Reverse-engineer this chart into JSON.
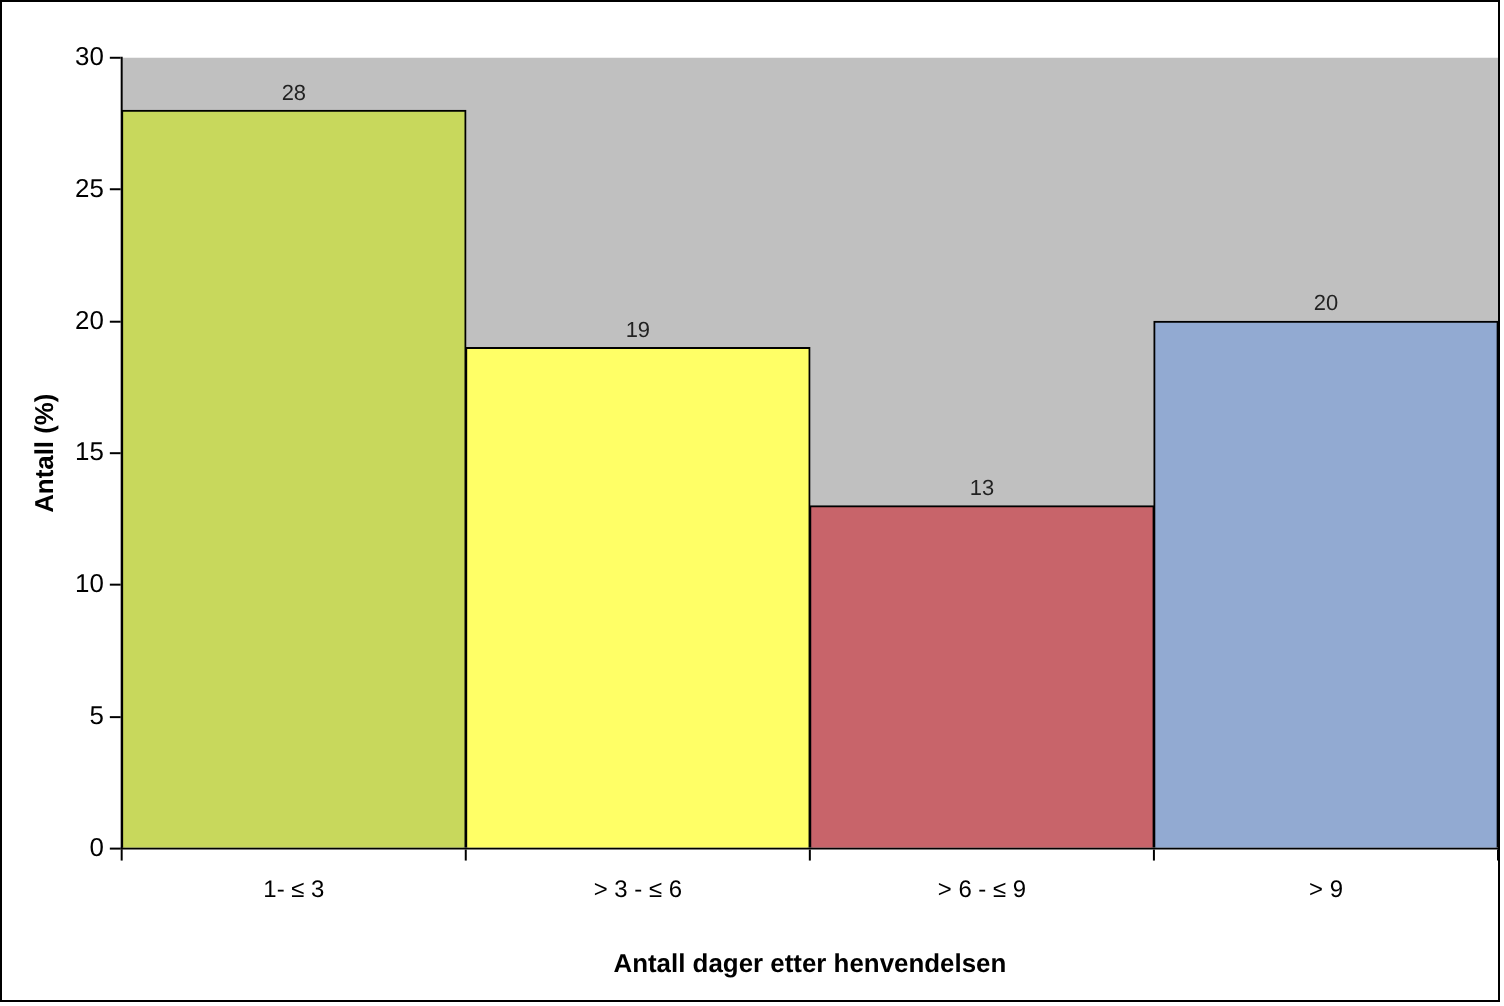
{
  "chart_data": {
    "type": "bar",
    "xlabel": "Antall dager etter henvendelsen",
    "ylabel": "Antall (%)",
    "categories": [
      "1- ≤ 3",
      "> 3 - ≤ 6",
      "> 6 - ≤ 9",
      "> 9"
    ],
    "values": [
      28,
      19,
      13,
      20
    ],
    "colors": [
      "#c8d85c",
      "#ffff66",
      "#c8646a",
      "#92aad2"
    ],
    "ylim": [
      0,
      30
    ],
    "yticks": [
      0,
      5,
      10,
      15,
      20,
      25,
      30
    ],
    "grid": false,
    "legend": false,
    "data_labels": true
  }
}
